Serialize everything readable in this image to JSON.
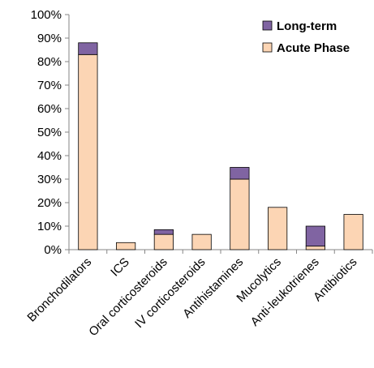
{
  "chart_data": {
    "type": "bar",
    "stacked": true,
    "categories": [
      "Bronchodilators",
      "ICS",
      "Oral corticosteroids",
      "IV corticosteroids",
      "Antihistamines",
      "Mucolytics",
      "Anti-leukotrienes",
      "Antibiotics"
    ],
    "series": [
      {
        "name": "Acute Phase",
        "color": "#fcd5b4",
        "values": [
          83,
          3,
          6.5,
          6.5,
          30,
          18,
          1.5,
          15
        ]
      },
      {
        "name": "Long-term",
        "color": "#8064a2",
        "values": [
          5,
          0,
          2,
          0,
          5,
          0,
          8.5,
          0
        ]
      }
    ],
    "y_tick_labels": [
      "0%",
      "10%",
      "20%",
      "30%",
      "40%",
      "50%",
      "60%",
      "70%",
      "80%",
      "90%",
      "100%"
    ],
    "ylim": [
      0,
      100
    ],
    "y_unit": "%",
    "grid": false,
    "legend": {
      "placement": "top-right",
      "entries": [
        "Long-term",
        "Acute Phase"
      ]
    },
    "title": "",
    "xlabel": "",
    "ylabel": ""
  }
}
